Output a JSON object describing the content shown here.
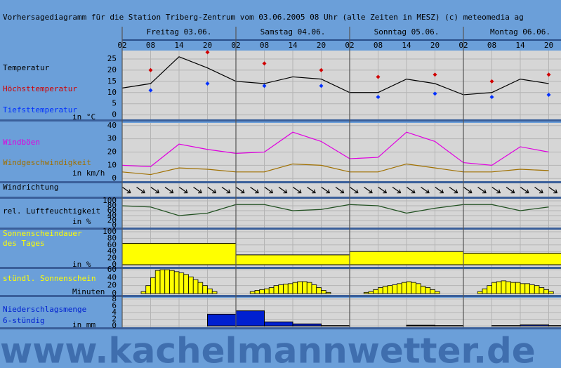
{
  "title": "Vorhersagediagramm für die Station Triberg-Zentrum vom 03.06.2005 08 Uhr (alle Zeiten in MESZ)   (c) meteomedia ag",
  "watermark": "www.kachelmannwetter.de",
  "days": [
    "Freitag 03.06.",
    "Samstag 04.06.",
    "Sonntag 05.06.",
    "Montag 06.06."
  ],
  "hours": [
    "02",
    "08",
    "14",
    "20",
    "02",
    "08",
    "14",
    "20",
    "02",
    "08",
    "14",
    "20",
    "02",
    "08",
    "14",
    "20"
  ],
  "chart_data": [
    {
      "type": "line",
      "ylim": [
        -2,
        28.75
      ],
      "yticks": [
        0,
        5,
        10,
        15,
        20,
        25
      ],
      "unit": "in °C",
      "series": [
        {
          "name": "Temperatur",
          "color": "#000000",
          "values": [
            12,
            14,
            26,
            21,
            15,
            14,
            17,
            16,
            10,
            10,
            16,
            14,
            9,
            10,
            16,
            14
          ]
        },
        {
          "name": "Höchsttemperatur",
          "color": "#d00000",
          "marker": "diamond",
          "values": [
            null,
            20,
            null,
            28,
            null,
            23,
            null,
            20,
            null,
            17,
            null,
            18,
            null,
            15,
            null,
            18
          ]
        },
        {
          "name": "Tiefsttemperatur",
          "color": "#0030ff",
          "marker": "diamond",
          "values": [
            null,
            11,
            null,
            14,
            null,
            13,
            null,
            13,
            null,
            8,
            null,
            9.5,
            null,
            8,
            null,
            9
          ]
        }
      ]
    },
    {
      "type": "line",
      "ylim": [
        -2,
        42
      ],
      "yticks": [
        0,
        10,
        20,
        30,
        40
      ],
      "unit": "in km/h",
      "series": [
        {
          "name": "Windböen",
          "color": "#e000e0",
          "values": [
            10,
            9,
            26,
            22,
            19,
            20,
            35,
            28,
            15,
            16,
            35,
            28,
            12,
            10,
            24,
            20
          ]
        },
        {
          "name": "Windgeschwindigkeit",
          "color": "#a07000",
          "values": [
            5,
            3,
            8,
            7,
            5,
            5,
            11,
            10,
            5,
            5,
            11,
            8,
            5,
            5,
            7,
            6
          ]
        }
      ]
    },
    {
      "type": "arrows",
      "label": "Windrichtung"
    },
    {
      "type": "line",
      "ylim": [
        -8.6,
        108.6
      ],
      "yticks": [
        0,
        20,
        40,
        60,
        80,
        100
      ],
      "unit": "in %",
      "series": [
        {
          "name": "rel. Luftfeuchtigkeit",
          "color": "#205020",
          "label_color": "#000000",
          "values": [
            80,
            75,
            40,
            50,
            85,
            85,
            60,
            65,
            85,
            80,
            50,
            70,
            85,
            85,
            60,
            75
          ]
        }
      ]
    },
    {
      "type": "daybar",
      "ylim": [
        -6.4,
        106.4
      ],
      "yticks": [
        0,
        20,
        40,
        60,
        80,
        100
      ],
      "unit": "in %",
      "series": [
        {
          "name_lines": [
            "Sonnenscheindauer",
            "des Tages"
          ],
          "color": "#ffff00",
          "values": [
            65,
            30,
            40,
            35
          ]
        }
      ]
    },
    {
      "type": "hourbar",
      "ylim": [
        -3.5,
        61.8
      ],
      "yticks": [
        0,
        20,
        40,
        60
      ],
      "unit": "Minuten",
      "series": [
        {
          "name": "stündl. Sonnenschein",
          "color": "#ffff00",
          "values": [
            0,
            0,
            0,
            0,
            5,
            20,
            40,
            58,
            60,
            60,
            58,
            55,
            52,
            48,
            42,
            35,
            28,
            20,
            12,
            5,
            0,
            0,
            0,
            0,
            0,
            0,
            0,
            5,
            8,
            10,
            12,
            15,
            20,
            22,
            24,
            25,
            28,
            30,
            30,
            28,
            22,
            15,
            8,
            3,
            0,
            0,
            0,
            0,
            0,
            0,
            0,
            3,
            5,
            10,
            15,
            18,
            20,
            22,
            25,
            28,
            30,
            28,
            25,
            18,
            15,
            10,
            5,
            0,
            0,
            0,
            0,
            0,
            0,
            0,
            0,
            5,
            12,
            20,
            28,
            30,
            32,
            30,
            28,
            28,
            25,
            25,
            22,
            20,
            15,
            10,
            5,
            0,
            0,
            0,
            0,
            0
          ]
        }
      ]
    },
    {
      "type": "stepbar",
      "ylim": [
        -0.4,
        8.4
      ],
      "yticks": [
        0,
        2,
        4,
        6,
        8
      ],
      "unit": "in mm",
      "series": [
        {
          "name_lines": [
            "Niederschlagsmenge",
            "6-stündig"
          ],
          "color": "#0020d0",
          "values": [
            0,
            0,
            0,
            3.5,
            4.5,
            1.2,
            0.6,
            0.1,
            0,
            0,
            0.2,
            0.1,
            0,
            0.1,
            0.3,
            0.1
          ]
        }
      ]
    }
  ]
}
